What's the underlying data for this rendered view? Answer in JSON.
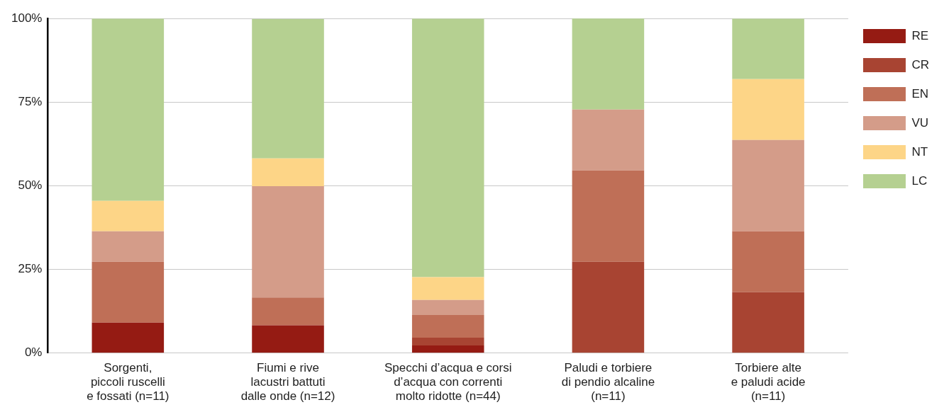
{
  "chart_data": {
    "type": "bar",
    "stacked": true,
    "categories": [
      "Sorgenti,\npiccoli ruscelli\ne fossati (n=11)",
      "Fiumi e rive\nlacustri battuti\ndalle onde (n=12)",
      "Specchi d’acqua e corsi\nd’acqua con correnti\nmolto ridotte (n=44)",
      "Paludi e torbiere\ndi pendio alcaline\n(n=11)",
      "Torbiere alte\ne paludi acide\n(n=11)"
    ],
    "series": [
      {
        "name": "RE",
        "color": "#951b13",
        "values": [
          9.1,
          8.3,
          2.3,
          0,
          0
        ]
      },
      {
        "name": "CR",
        "color": "#a84432",
        "values": [
          0,
          0,
          2.3,
          27.3,
          18.2
        ]
      },
      {
        "name": "EN",
        "color": "#bf6f57",
        "values": [
          18.2,
          8.3,
          6.8,
          27.3,
          18.2
        ]
      },
      {
        "name": "VU",
        "color": "#d49c89",
        "values": [
          9.1,
          33.3,
          4.5,
          18.2,
          27.3
        ]
      },
      {
        "name": "NT",
        "color": "#fdd587",
        "values": [
          9.1,
          8.3,
          6.8,
          0,
          18.2
        ]
      },
      {
        "name": "LC",
        "color": "#b5d091",
        "values": [
          54.5,
          41.7,
          77.3,
          27.3,
          18.1
        ]
      }
    ],
    "ylim": [
      0,
      100
    ],
    "yticks": [
      {
        "value": 0,
        "label": "0%"
      },
      {
        "value": 25,
        "label": "25%"
      },
      {
        "value": 50,
        "label": "50%"
      },
      {
        "value": 75,
        "label": "75%"
      },
      {
        "value": 100,
        "label": "100%"
      }
    ],
    "grid": "y",
    "legend": "right"
  }
}
